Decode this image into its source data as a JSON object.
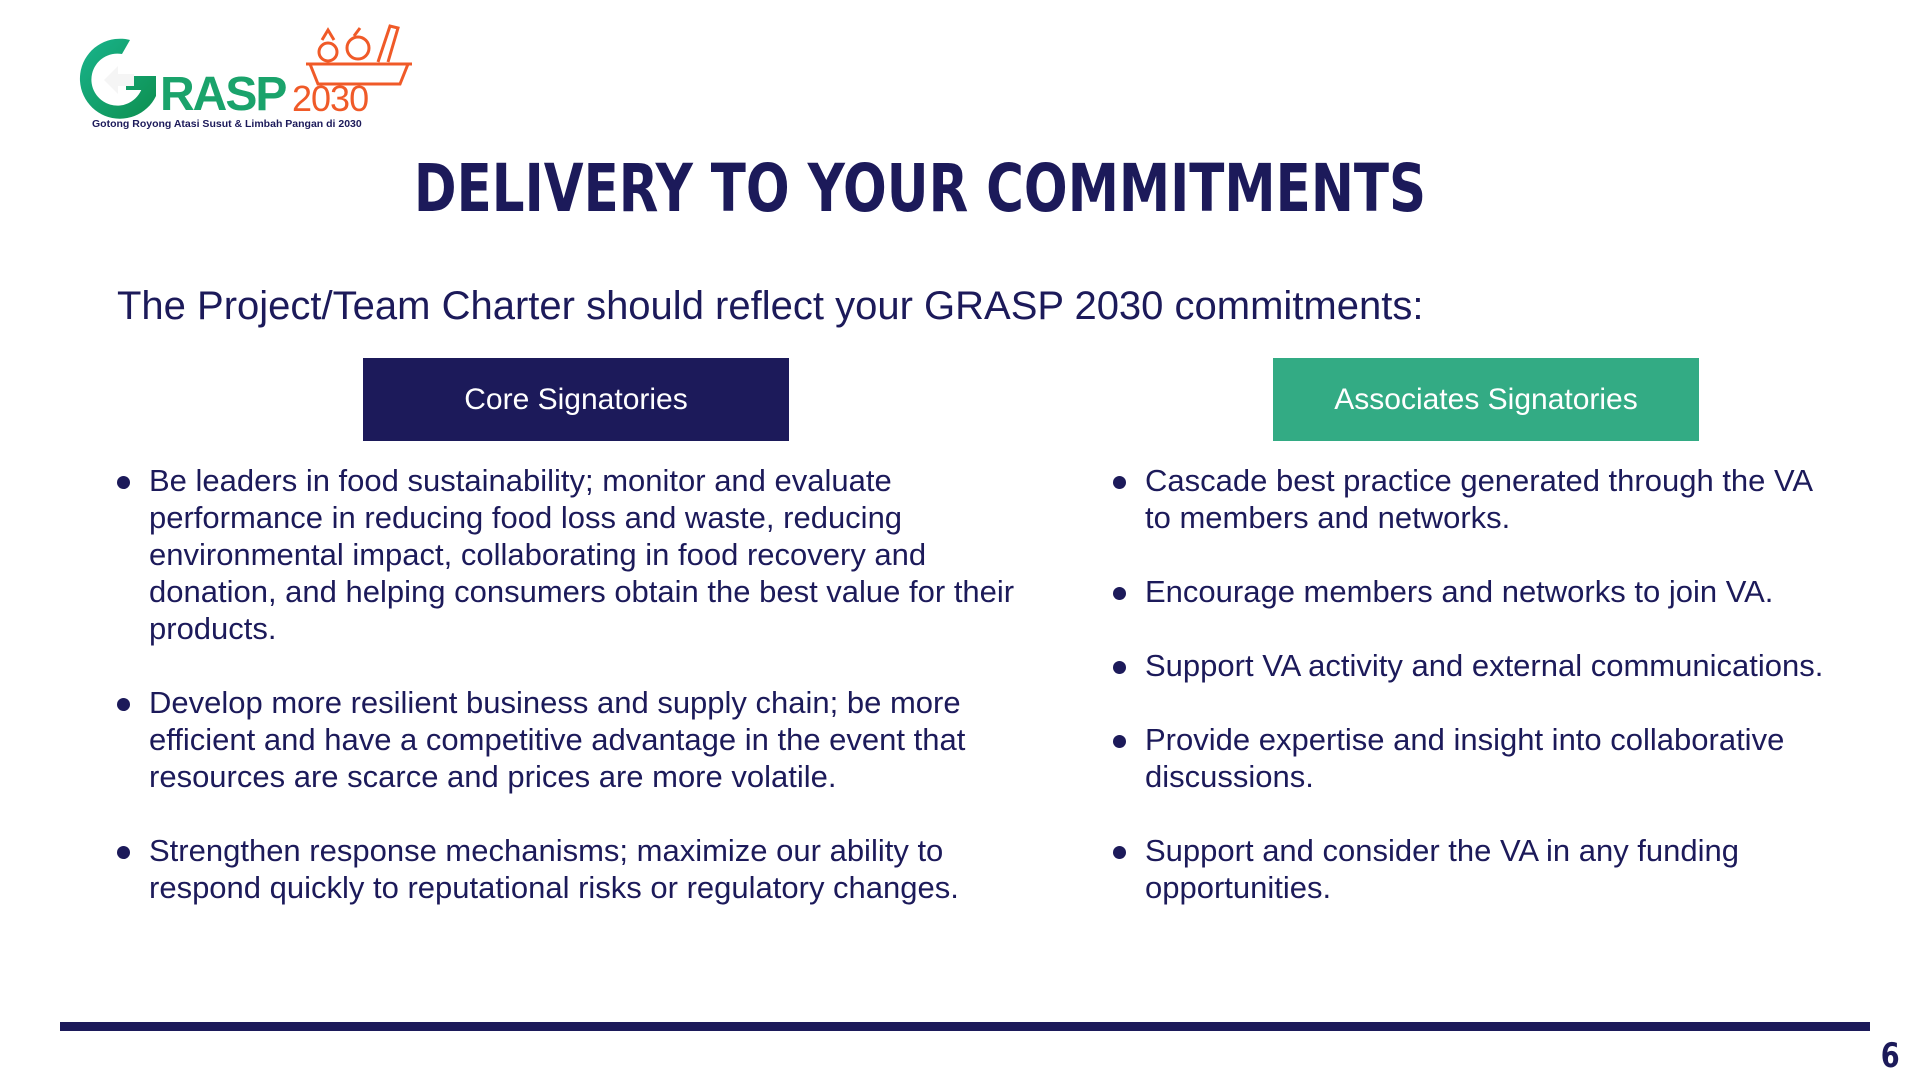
{
  "logo": {
    "brand": "GRASP",
    "year": "2030",
    "tagline": "Gotong Royong Atasi Susut & Limbah Pangan di 2030",
    "icon": "grocery-basket-icon"
  },
  "slide": {
    "title": "DELIVERY TO YOUR COMMITMENTS",
    "subtitle": "The Project/Team Charter should reflect your GRASP 2030 commitments:",
    "page_number": "6"
  },
  "core": {
    "label": "Core Signatories",
    "items": [
      "Be leaders in food sustainability; monitor and evaluate performance in reducing food loss and waste, reducing environmental impact, collaborating in food recovery and donation, and helping consumers obtain the best value for their products.",
      "Develop more resilient business and supply chain; be more efficient and have a competitive advantage in the  event that resources are scarce and prices are more  volatile.",
      "Strengthen response mechanisms; maximize our ability to respond quickly to reputational risks or regulatory changes."
    ]
  },
  "associates": {
    "label": "Associates Signatories",
    "items": [
      "Cascade best practice generated through the VA to  members and networks.",
      "Encourage members and networks to join VA.",
      "Support VA activity and external communications.",
      "Provide expertise and insight into collaborative  discussions.",
      "Support and consider the VA in any funding opportunities."
    ]
  },
  "colors": {
    "navy": "#1c1a5a",
    "green": "#33ab84",
    "logo_green": "#1aa36b",
    "logo_orange": "#f05a28"
  }
}
